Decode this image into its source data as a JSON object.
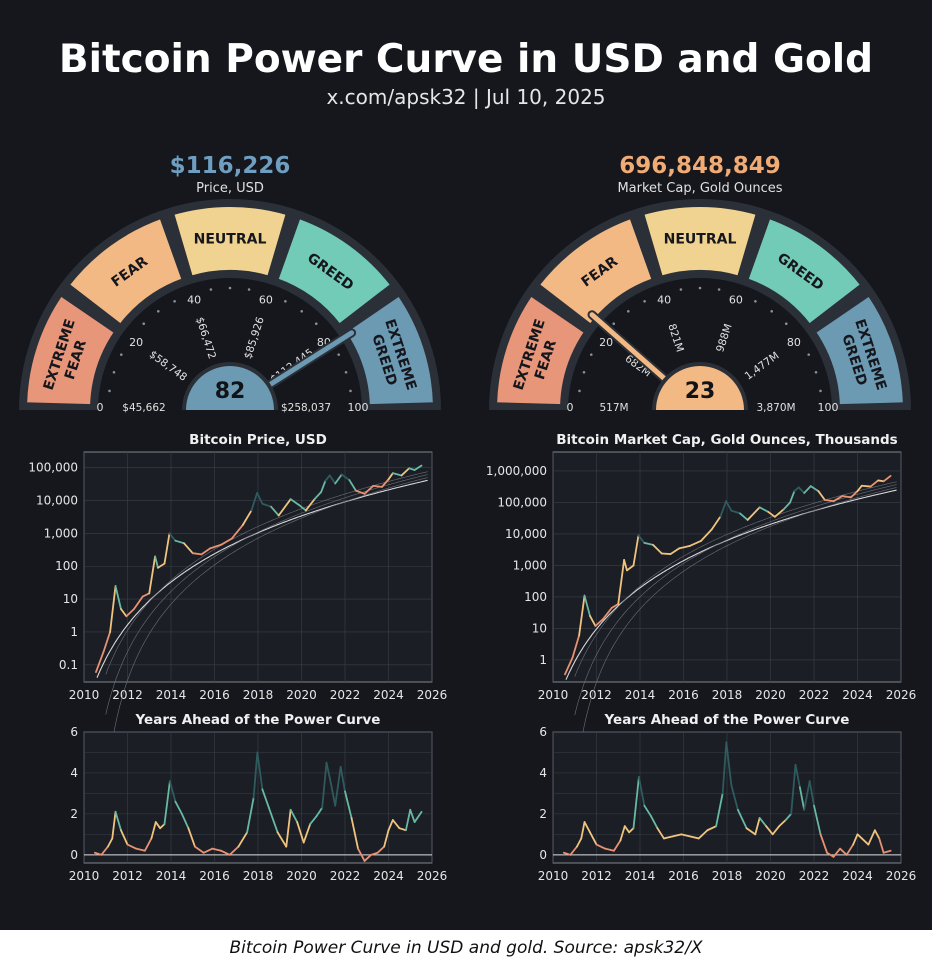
{
  "header": {
    "title": "Bitcoin Power Curve in USD and Gold",
    "subtitle": "x.com/apsk32 | Jul 10, 2025"
  },
  "caption": "Bitcoin Power Curve in USD and gold. Source: apsk32/X",
  "colors": {
    "background": "#15171d",
    "extreme_fear": "#e8967a",
    "fear": "#f3b984",
    "neutral": "#f0d390",
    "greed": "#72cbb6",
    "extreme_greed": "#6d9ab3",
    "usd_headline": "#6f9ec0",
    "gold_headline": "#f1ab74"
  },
  "gauges": [
    {
      "id": "usd",
      "headline": "$116,226",
      "headline_sub": "Price, USD",
      "value": 82,
      "value_label": "82",
      "zones": [
        "EXTREME|FEAR",
        "FEAR",
        "NEUTRAL",
        "GREED",
        "EXTREME|GREED"
      ],
      "ticks": [
        "0",
        "20",
        "40",
        "60",
        "80",
        "100"
      ],
      "tick_values": [
        "$45,662",
        "$58,748",
        "$66,472",
        "$85,926",
        "$112,445",
        "$258,037"
      ]
    },
    {
      "id": "gold",
      "headline": "696,848,849",
      "headline_sub": "Market Cap, Gold Ounces",
      "value": 23,
      "value_label": "23",
      "zones": [
        "EXTREME|FEAR",
        "FEAR",
        "NEUTRAL",
        "GREED",
        "EXTREME|GREED"
      ],
      "ticks": [
        "0",
        "20",
        "40",
        "60",
        "80",
        "100"
      ],
      "tick_values": [
        "517M",
        "682M",
        "821M",
        "988M",
        "1,477M",
        "3,870M"
      ]
    }
  ],
  "chart_data": [
    {
      "type": "line",
      "title": "Bitcoin Price, USD",
      "y_scale": "log",
      "ylim": [
        0.03,
        300000
      ],
      "xlim": [
        2010,
        2026
      ],
      "x_ticks": [
        "2010",
        "2012",
        "2014",
        "2016",
        "2018",
        "2020",
        "2022",
        "2024",
        "2026"
      ],
      "y_ticks": [
        "0.1",
        "1",
        "10",
        "100",
        "1,000",
        "10,000",
        "100,000"
      ],
      "y_tick_values": [
        0.1,
        1,
        10,
        100,
        1000,
        10000,
        100000
      ],
      "series": [
        {
          "x": [
            2010.55,
            2010.9,
            2011.2,
            2011.45,
            2011.7,
            2011.95,
            2012.3,
            2012.7,
            2013.0,
            2013.27,
            2013.4,
            2013.7,
            2013.93,
            2014.2,
            2014.6,
            2015.0,
            2015.4,
            2015.8,
            2016.3,
            2016.8,
            2017.3,
            2017.7,
            2017.96,
            2018.2,
            2018.6,
            2018.95,
            2019.5,
            2019.9,
            2020.2,
            2020.6,
            2020.9,
            2021.1,
            2021.3,
            2021.55,
            2021.85,
            2022.2,
            2022.5,
            2022.9,
            2023.3,
            2023.7,
            2024.0,
            2024.2,
            2024.6,
            2024.95,
            2025.2,
            2025.52
          ],
          "y": [
            0.06,
            0.25,
            1,
            25,
            5,
            3,
            5,
            12,
            15,
            200,
            90,
            120,
            1000,
            600,
            500,
            250,
            230,
            350,
            450,
            700,
            1800,
            5000,
            17000,
            8000,
            6500,
            3500,
            11000,
            7200,
            5000,
            11000,
            18000,
            40000,
            58000,
            33000,
            62000,
            42000,
            20000,
            16000,
            28000,
            26000,
            44000,
            68000,
            58000,
            96000,
            85000,
            116000
          ]
        }
      ],
      "extra_lines": {
        "band_curves": 7,
        "support_curve": 1
      }
    },
    {
      "type": "line",
      "title": "Bitcoin Market Cap, Gold Ounces, Thousands",
      "y_scale": "log",
      "ylim": [
        0.2,
        4000000
      ],
      "xlim": [
        2010,
        2026
      ],
      "x_ticks": [
        "2010",
        "2012",
        "2014",
        "2016",
        "2018",
        "2020",
        "2022",
        "2024",
        "2026"
      ],
      "y_ticks": [
        "1",
        "10",
        "100",
        "1,000",
        "10,000",
        "100,000",
        "1,000,000"
      ],
      "y_tick_values": [
        1,
        10,
        100,
        1000,
        10000,
        100000,
        1000000
      ],
      "series": [
        {
          "x": [
            2010.55,
            2010.9,
            2011.2,
            2011.45,
            2011.7,
            2011.95,
            2012.3,
            2012.7,
            2013.0,
            2013.27,
            2013.4,
            2013.7,
            2013.93,
            2014.2,
            2014.6,
            2015.0,
            2015.4,
            2015.8,
            2016.3,
            2016.8,
            2017.3,
            2017.7,
            2017.96,
            2018.2,
            2018.6,
            2018.95,
            2019.5,
            2019.9,
            2020.2,
            2020.6,
            2020.9,
            2021.1,
            2021.3,
            2021.55,
            2021.85,
            2022.2,
            2022.5,
            2022.9,
            2023.3,
            2023.7,
            2024.0,
            2024.2,
            2024.6,
            2024.95,
            2025.2,
            2025.52
          ],
          "y": [
            0.35,
            1.2,
            6,
            110,
            25,
            12,
            20,
            45,
            60,
            1500,
            700,
            1000,
            9000,
            5200,
            4500,
            2400,
            2300,
            3500,
            4200,
            6000,
            14000,
            36000,
            110000,
            55000,
            45000,
            28000,
            70000,
            50000,
            35000,
            60000,
            100000,
            230000,
            300000,
            200000,
            330000,
            230000,
            120000,
            110000,
            160000,
            145000,
            230000,
            340000,
            320000,
            500000,
            470000,
            697000
          ]
        }
      ],
      "extra_lines": {
        "band_curves": 7,
        "support_curve": 1
      }
    },
    {
      "type": "line",
      "title": "Years Ahead of the Power Curve",
      "ylim": [
        -0.4,
        6
      ],
      "xlim": [
        2010,
        2026
      ],
      "x_ticks": [
        "2010",
        "2012",
        "2014",
        "2016",
        "2018",
        "2020",
        "2022",
        "2024",
        "2026"
      ],
      "y_ticks": [
        "0",
        "2",
        "4",
        "6"
      ],
      "y_tick_values": [
        0,
        2,
        4,
        6
      ],
      "series": [
        {
          "x": [
            2010.5,
            2010.8,
            2011.1,
            2011.3,
            2011.45,
            2011.7,
            2012.0,
            2012.4,
            2012.8,
            2013.1,
            2013.3,
            2013.5,
            2013.7,
            2013.95,
            2014.2,
            2014.5,
            2014.8,
            2015.1,
            2015.5,
            2015.9,
            2016.3,
            2016.7,
            2017.1,
            2017.5,
            2017.8,
            2017.97,
            2018.2,
            2018.5,
            2018.9,
            2019.3,
            2019.5,
            2019.8,
            2020.1,
            2020.4,
            2020.7,
            2020.95,
            2021.15,
            2021.35,
            2021.55,
            2021.8,
            2022.0,
            2022.3,
            2022.6,
            2022.9,
            2023.2,
            2023.5,
            2023.8,
            2024.0,
            2024.2,
            2024.5,
            2024.8,
            2025.0,
            2025.2,
            2025.52
          ],
          "y": [
            0.1,
            0.0,
            0.4,
            0.8,
            2.1,
            1.2,
            0.5,
            0.3,
            0.2,
            0.8,
            1.6,
            1.3,
            1.5,
            3.6,
            2.6,
            2.0,
            1.3,
            0.4,
            0.1,
            0.3,
            0.2,
            0.0,
            0.4,
            1.1,
            2.8,
            5.0,
            3.2,
            2.3,
            1.1,
            0.4,
            2.2,
            1.6,
            0.6,
            1.5,
            1.9,
            2.3,
            4.5,
            3.5,
            2.4,
            4.3,
            3.1,
            1.8,
            0.3,
            -0.3,
            0.0,
            0.1,
            0.4,
            1.2,
            1.7,
            1.3,
            1.2,
            2.2,
            1.6,
            2.1
          ]
        }
      ]
    },
    {
      "type": "line",
      "title": "Years Ahead of the Power Curve",
      "ylim": [
        -0.4,
        6
      ],
      "xlim": [
        2010,
        2026
      ],
      "x_ticks": [
        "2010",
        "2012",
        "2014",
        "2016",
        "2018",
        "2020",
        "2022",
        "2024",
        "2026"
      ],
      "y_ticks": [
        "0",
        "2",
        "4",
        "6"
      ],
      "y_tick_values": [
        0,
        2,
        4,
        6
      ],
      "series": [
        {
          "x": [
            2010.5,
            2010.8,
            2011.1,
            2011.3,
            2011.45,
            2011.7,
            2012.0,
            2012.4,
            2012.8,
            2013.1,
            2013.3,
            2013.5,
            2013.7,
            2013.95,
            2014.2,
            2014.5,
            2014.8,
            2015.1,
            2015.5,
            2015.9,
            2016.3,
            2016.7,
            2017.1,
            2017.5,
            2017.8,
            2017.97,
            2018.2,
            2018.5,
            2018.9,
            2019.3,
            2019.5,
            2019.8,
            2020.1,
            2020.4,
            2020.7,
            2020.95,
            2021.15,
            2021.35,
            2021.55,
            2021.8,
            2022.0,
            2022.3,
            2022.6,
            2022.9,
            2023.2,
            2023.5,
            2023.8,
            2024.0,
            2024.2,
            2024.5,
            2024.8,
            2025.0,
            2025.2,
            2025.52
          ],
          "y": [
            0.1,
            0.0,
            0.4,
            0.8,
            1.6,
            1.1,
            0.5,
            0.3,
            0.2,
            0.7,
            1.4,
            1.1,
            1.3,
            3.8,
            2.4,
            1.9,
            1.3,
            0.8,
            0.9,
            1.0,
            0.9,
            0.8,
            1.2,
            1.4,
            3.0,
            5.5,
            3.4,
            2.2,
            1.3,
            1.0,
            1.8,
            1.4,
            1.0,
            1.4,
            1.7,
            2.0,
            4.4,
            3.3,
            2.2,
            3.6,
            2.4,
            1.0,
            0.1,
            -0.1,
            0.3,
            0.0,
            0.5,
            1.0,
            0.8,
            0.5,
            1.2,
            0.8,
            0.1,
            0.2
          ]
        }
      ]
    }
  ]
}
